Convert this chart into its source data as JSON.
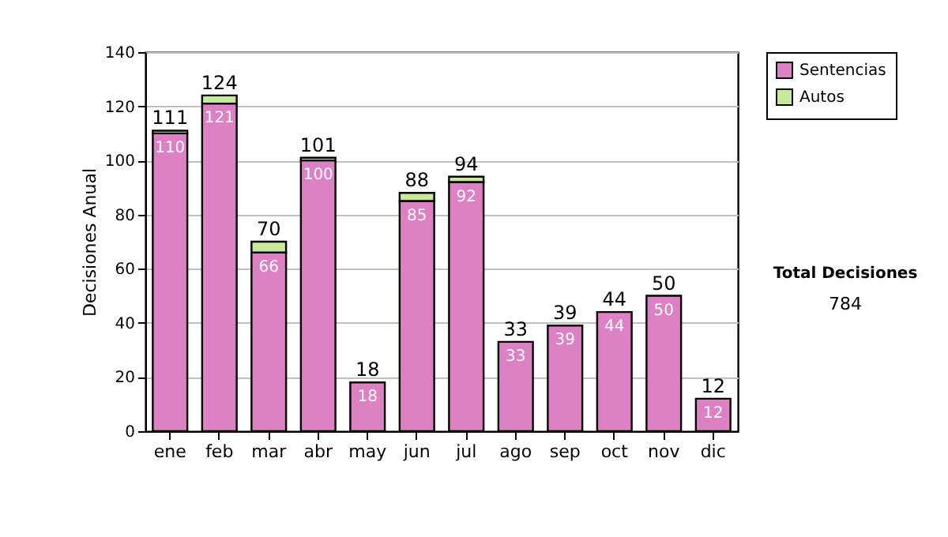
{
  "chart_data": {
    "type": "bar",
    "stacked": true,
    "ylabel": "Decisiones Anual",
    "categories": [
      "ene",
      "feb",
      "mar",
      "abr",
      "may",
      "jun",
      "jul",
      "ago",
      "sep",
      "oct",
      "nov",
      "dic"
    ],
    "series": [
      {
        "name": "Sentencias",
        "color": "#dd80c4",
        "values": [
          110,
          121,
          66,
          100,
          18,
          85,
          92,
          33,
          39,
          44,
          50,
          12
        ],
        "value_labels": [
          "110",
          "121",
          "66",
          "100",
          "18",
          "85",
          "92",
          "33",
          "39",
          "44",
          "50",
          "12"
        ]
      },
      {
        "name": "Autos",
        "color": "#c8e89a",
        "values": [
          1,
          3,
          4,
          1,
          0,
          3,
          2,
          0,
          0,
          0,
          0,
          0
        ]
      }
    ],
    "totals": [
      "111",
      "124",
      "70",
      "101",
      "18",
      "88",
      "94",
      "33",
      "39",
      "44",
      "50",
      "12"
    ],
    "ylim": [
      0,
      140
    ],
    "yticks": [
      0,
      20,
      40,
      60,
      80,
      100,
      120,
      140
    ],
    "grid": "y",
    "legend": "right",
    "annotations": [
      "Total Decisiones",
      "784"
    ]
  }
}
